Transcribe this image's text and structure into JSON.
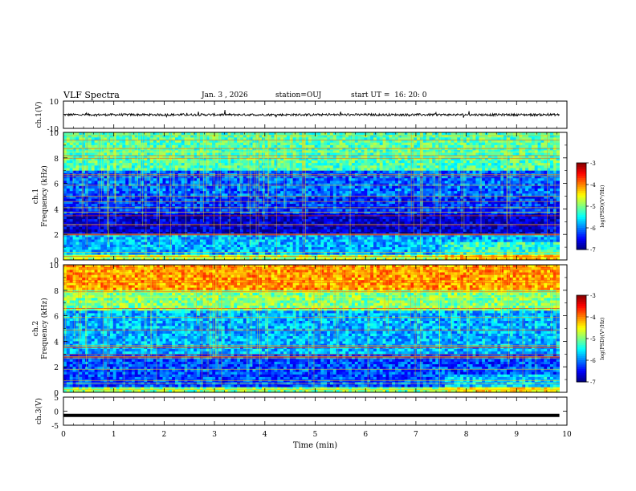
{
  "header": {
    "title": "VLF Spectra",
    "date": "Jan. 3 , 2026",
    "station": "station=OUJ",
    "start": "start UT =  16: 20: 0"
  },
  "chart_data": [
    {
      "type": "line",
      "panel": "ch1-waveform",
      "ylabel": "ch.1(V)",
      "ylim": [
        -10,
        10
      ],
      "yticks": [
        "10",
        "-10"
      ],
      "xlim": [
        0,
        10
      ],
      "series": [
        {
          "values_summary": "noisy trace near 0 V, amplitude about ±1 V with spikes up to ~3 V"
        }
      ]
    },
    {
      "type": "heatmap",
      "panel": "ch1-spectrogram",
      "ylabel": "ch.1 Frequency (kHz)",
      "ylim": [
        0,
        10
      ],
      "yticks": [
        "0",
        "2",
        "4",
        "6",
        "8",
        "10"
      ],
      "xlim": [
        0,
        9.85
      ],
      "colorbar": {
        "label": "log(PSD)(V²/Hz)",
        "range": [
          -7,
          -3
        ],
        "ticks": [
          "-3",
          "-4",
          "-5",
          "-6",
          "-7"
        ]
      },
      "bands": [
        {
          "f_from": 0.0,
          "f_to": 0.5,
          "level": -4.8
        },
        {
          "f_from": 0.5,
          "f_to": 2.0,
          "level": -5.8
        },
        {
          "f_from": 2.0,
          "f_to": 3.6,
          "level": -6.7
        },
        {
          "f_from": 3.6,
          "f_to": 5.0,
          "level": -6.3
        },
        {
          "f_from": 5.0,
          "f_to": 7.0,
          "level": -6.1
        },
        {
          "f_from": 7.0,
          "f_to": 10.0,
          "level": -5.2
        }
      ]
    },
    {
      "type": "heatmap",
      "panel": "ch2-spectrogram",
      "ylabel": "ch.2 Frequency (kHz)",
      "ylim": [
        0,
        10
      ],
      "yticks": [
        "0",
        "2",
        "4",
        "6",
        "8",
        "10"
      ],
      "xlim": [
        0,
        9.85
      ],
      "colorbar": {
        "label": "log(PSD)(V²/Hz)",
        "range": [
          -7,
          -3
        ],
        "ticks": [
          "-3",
          "-4",
          "-5",
          "-6",
          "-7"
        ]
      },
      "bands": [
        {
          "f_from": 0.0,
          "f_to": 0.4,
          "level": -5.0
        },
        {
          "f_from": 0.4,
          "f_to": 3.0,
          "level": -6.2
        },
        {
          "f_from": 3.0,
          "f_to": 6.5,
          "level": -5.8
        },
        {
          "f_from": 6.5,
          "f_to": 8.0,
          "level": -5.0
        },
        {
          "f_from": 8.0,
          "f_to": 10.0,
          "level": -4.1
        }
      ]
    },
    {
      "type": "line",
      "panel": "ch3-waveform",
      "ylabel": "ch.3(V)",
      "ylim": [
        -5,
        5
      ],
      "yticks": [
        "5",
        "0",
        "-5"
      ],
      "xlim": [
        0,
        10
      ],
      "xlabel": "Time (min)",
      "xticks": [
        "0",
        "1",
        "2",
        "3",
        "4",
        "5",
        "6",
        "7",
        "8",
        "9",
        "10"
      ],
      "series": [
        {
          "values_summary": "flat line at about -1.5 V"
        }
      ]
    }
  ],
  "colors": {
    "cmap": [
      "#000080",
      "#0000ff",
      "#0080ff",
      "#00ffff",
      "#80ff80",
      "#ffff00",
      "#ff8000",
      "#ff0000",
      "#800000"
    ]
  }
}
